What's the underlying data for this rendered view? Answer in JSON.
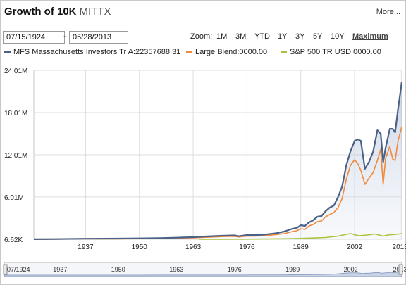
{
  "header": {
    "title": "Growth of 10K",
    "ticker": "MITTX",
    "more_label": "More..."
  },
  "dates": {
    "start": "07/15/1924",
    "separator": "-",
    "end": "05/28/2013"
  },
  "zoom": {
    "label": "Zoom:",
    "options": [
      "1M",
      "3M",
      "YTD",
      "1Y",
      "3Y",
      "5Y",
      "10Y",
      "Maximum"
    ],
    "active": "Maximum"
  },
  "colors": {
    "fund": "#4b6186",
    "blend": "#f08a3c",
    "sp500": "#a8c43a",
    "grid": "#dcdcdc"
  },
  "chart_data": {
    "type": "line",
    "xlabel": "",
    "ylabel": "",
    "x_ticks": [
      "1937",
      "1950",
      "1963",
      "1976",
      "1989",
      "2002",
      "2013"
    ],
    "y_ticks": [
      "24.01M",
      "18.01M",
      "12.01M",
      "6.01M",
      "6.62K"
    ],
    "ylim": [
      0,
      24010000
    ],
    "xlim": [
      1924.5,
      2013.4
    ],
    "grid": true,
    "legend": "top",
    "series": [
      {
        "name": "MFS Massachusetts Investors Tr A:22357688.31",
        "x": [
          1924.5,
          1930,
          1937,
          1945,
          1950,
          1955,
          1960,
          1963,
          1966,
          1970,
          1973,
          1974,
          1976,
          1978,
          1980,
          1983,
          1985,
          1987,
          1988,
          1989,
          1990,
          1991,
          1992,
          1993,
          1994,
          1995,
          1996,
          1997,
          1998,
          1999,
          2000,
          2001,
          2002,
          2002.8,
          2003.5,
          2004.5,
          2005.5,
          2006.5,
          2007.5,
          2008.3,
          2008.9,
          2009.5,
          2010.5,
          2011.2,
          2011.8,
          2012.5,
          2013.4
        ],
        "y": [
          10000,
          30000,
          80000,
          100000,
          130000,
          160000,
          250000,
          300000,
          400000,
          500000,
          550000,
          430000,
          600000,
          600000,
          650000,
          850000,
          1100000,
          1500000,
          1600000,
          2000000,
          1900000,
          2400000,
          2700000,
          3200000,
          3300000,
          4000000,
          4500000,
          4800000,
          6000000,
          7500000,
          10500000,
          12500000,
          14000000,
          14200000,
          14000000,
          10000000,
          11000000,
          12500000,
          15500000,
          15000000,
          11000000,
          13000000,
          15700000,
          15700000,
          15200000,
          18500000,
          22357688
        ]
      },
      {
        "name": "Large Blend:0000.00",
        "x": [
          1924.5,
          1930,
          1937,
          1945,
          1950,
          1955,
          1960,
          1963,
          1966,
          1970,
          1973,
          1974,
          1976,
          1978,
          1980,
          1983,
          1985,
          1987,
          1988,
          1989,
          1990,
          1991,
          1992,
          1993,
          1994,
          1995,
          1996,
          1997,
          1998,
          1999,
          2000,
          2001,
          2002,
          2002.8,
          2003.5,
          2004.5,
          2005.5,
          2006.5,
          2007.5,
          2008.3,
          2008.9,
          2009.5,
          2010.5,
          2011.2,
          2011.8,
          2012.5,
          2013.4
        ],
        "y": [
          10000,
          20000,
          50000,
          60000,
          80000,
          100000,
          180000,
          200000,
          280000,
          380000,
          420000,
          330000,
          450000,
          460000,
          500000,
          650000,
          800000,
          1100000,
          1200000,
          1500000,
          1400000,
          1900000,
          2100000,
          2500000,
          2600000,
          3200000,
          3500000,
          3800000,
          4500000,
          5800000,
          8500000,
          10500000,
          11300000,
          10700000,
          9800000,
          7800000,
          8700000,
          9500000,
          11200000,
          12800000,
          7800000,
          11500000,
          13200000,
          11400000,
          11200000,
          14000000,
          16000000
        ]
      },
      {
        "name": "S&P 500 TR USD:0000.00",
        "x": [
          1964.5,
          1970,
          1976,
          1980,
          1985,
          1989,
          1992,
          1995,
          1998,
          2000,
          2001,
          2002,
          2003,
          2005,
          2007,
          2008.9,
          2010,
          2012,
          2013.4
        ],
        "y": [
          10000,
          15000,
          25000,
          40000,
          70000,
          120000,
          180000,
          250000,
          450000,
          700000,
          800000,
          650000,
          500000,
          600000,
          750000,
          450000,
          600000,
          700000,
          800000
        ]
      }
    ]
  }
}
